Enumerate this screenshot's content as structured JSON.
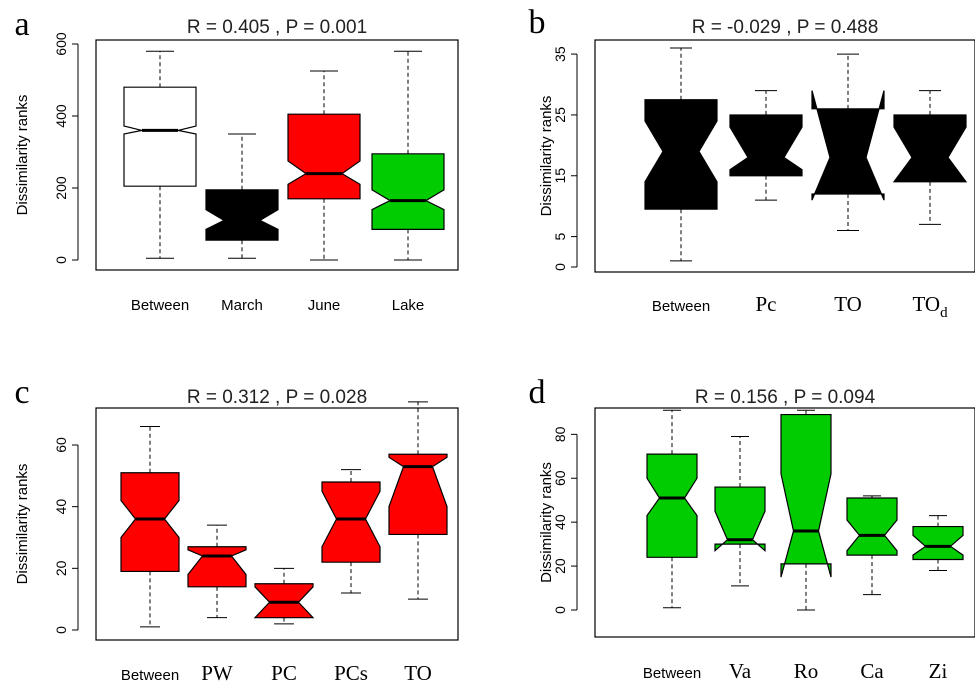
{
  "chart_data": [
    {
      "panel": "a",
      "type": "box",
      "stat_title": "R = 0.405 ,  P = 0.001",
      "ylabel": "Dissimilarity ranks",
      "ylim": [
        0,
        600
      ],
      "yticks": [
        "0",
        "200",
        "400",
        "600"
      ],
      "boxes": [
        {
          "label": "Between",
          "min": 5,
          "q1": 205,
          "median": 360,
          "q3": 480,
          "max": 580,
          "notch_lo": 350,
          "notch_hi": 372,
          "fill": "#ffffff",
          "label_font": "sans"
        },
        {
          "label": "March",
          "min": 5,
          "q1": 55,
          "median": 110,
          "q3": 195,
          "max": 350,
          "notch_lo": 85,
          "notch_hi": 140,
          "fill": "#000000",
          "label_font": "sans"
        },
        {
          "label": "June",
          "min": 0,
          "q1": 170,
          "median": 240,
          "q3": 405,
          "max": 525,
          "notch_lo": 210,
          "notch_hi": 275,
          "fill": "#ff0000",
          "label_font": "sans"
        },
        {
          "label": "Lake",
          "min": 0,
          "q1": 85,
          "median": 165,
          "q3": 295,
          "max": 580,
          "notch_lo": 140,
          "notch_hi": 195,
          "fill": "#00cc00",
          "label_font": "sans"
        }
      ]
    },
    {
      "panel": "b",
      "type": "box",
      "stat_title": "R = -0.029 ,  P = 0.488",
      "ylabel": "Dissimilarity ranks",
      "ylim": [
        0,
        36
      ],
      "yticks": [
        "0",
        "5",
        "15",
        "25",
        "35"
      ],
      "boxes": [
        {
          "label": "Between",
          "min": 1,
          "q1": 9.5,
          "median": 19,
          "q3": 27.5,
          "max": 36,
          "notch_lo": 14,
          "notch_hi": 24,
          "fill": "#000000",
          "label_font": "sans"
        },
        {
          "label": "Pc",
          "min": 11,
          "q1": 15,
          "median": 18,
          "q3": 25,
          "max": 29,
          "notch_lo": 16,
          "notch_hi": 23,
          "fill": "#000000",
          "label_font": "serif"
        },
        {
          "label": "TO",
          "min": 6,
          "q1": 12,
          "median": 18,
          "q3": 26,
          "max": 35,
          "notch_lo": 11,
          "notch_hi": 29,
          "fill": "#000000",
          "label_font": "serif"
        },
        {
          "label": "TO",
          "label_sub": "d",
          "min": 7,
          "q1": 14,
          "median": 18,
          "q3": 25,
          "max": 29,
          "notch_lo": 14,
          "notch_hi": 23,
          "fill": "#000000",
          "label_font": "serif"
        }
      ]
    },
    {
      "panel": "c",
      "type": "box",
      "stat_title": "R = 0.312 ,  P = 0.028",
      "ylabel": "Dissimilarity ranks",
      "ylim": [
        0,
        72
      ],
      "yticks": [
        "0",
        "20",
        "40",
        "60"
      ],
      "boxes": [
        {
          "label": "Between",
          "min": 1,
          "q1": 19,
          "median": 36,
          "q3": 51,
          "max": 66,
          "notch_lo": 30,
          "notch_hi": 42,
          "fill": "#ff0000",
          "label_font": "sans"
        },
        {
          "label": "PW",
          "min": 4,
          "q1": 14,
          "median": 24,
          "q3": 27,
          "max": 34,
          "notch_lo": 18,
          "notch_hi": 26,
          "fill": "#ff0000",
          "label_font": "serif"
        },
        {
          "label": "PC",
          "min": 2,
          "q1": 4,
          "median": 9,
          "q3": 15,
          "max": 20,
          "notch_lo": 4,
          "notch_hi": 14,
          "fill": "#ff0000",
          "label_font": "serif"
        },
        {
          "label": "PCs",
          "min": 12,
          "q1": 22,
          "median": 36,
          "q3": 48,
          "max": 52,
          "notch_lo": 27,
          "notch_hi": 45,
          "fill": "#ff0000",
          "label_font": "serif"
        },
        {
          "label": "TO",
          "min": 10,
          "q1": 31,
          "median": 53,
          "q3": 57,
          "max": 74,
          "notch_lo": 40,
          "notch_hi": 56,
          "fill": "#ff0000",
          "label_font": "serif"
        }
      ]
    },
    {
      "panel": "d",
      "type": "box",
      "stat_title": "R = 0.156 ,  P = 0.094",
      "ylabel": "Dissimilarity ranks",
      "ylim": [
        0,
        92
      ],
      "yticks": [
        "0",
        "20",
        "40",
        "60",
        "80"
      ],
      "boxes": [
        {
          "label": "Between",
          "min": 1,
          "q1": 24,
          "median": 51,
          "q3": 71,
          "max": 91,
          "notch_lo": 43,
          "notch_hi": 60,
          "fill": "#00cc00",
          "label_font": "sans"
        },
        {
          "label": "Va",
          "min": 11,
          "q1": 30,
          "median": 32,
          "q3": 56,
          "max": 79,
          "notch_lo": 27,
          "notch_hi": 45,
          "fill": "#00cc00",
          "label_font": "serif"
        },
        {
          "label": "Ro",
          "min": 0,
          "q1": 21,
          "median": 36,
          "q3": 89,
          "max": 91,
          "notch_lo": 15,
          "notch_hi": 62,
          "fill": "#00cc00",
          "label_font": "serif"
        },
        {
          "label": "Ca",
          "min": 7,
          "q1": 25,
          "median": 34,
          "q3": 51,
          "max": 52,
          "notch_lo": 27,
          "notch_hi": 41,
          "fill": "#00cc00",
          "label_font": "serif"
        },
        {
          "label": "Zi",
          "min": 18,
          "q1": 23,
          "median": 29,
          "q3": 38,
          "max": 43,
          "notch_lo": 25,
          "notch_hi": 34,
          "fill": "#00cc00",
          "label_font": "serif"
        }
      ]
    }
  ]
}
